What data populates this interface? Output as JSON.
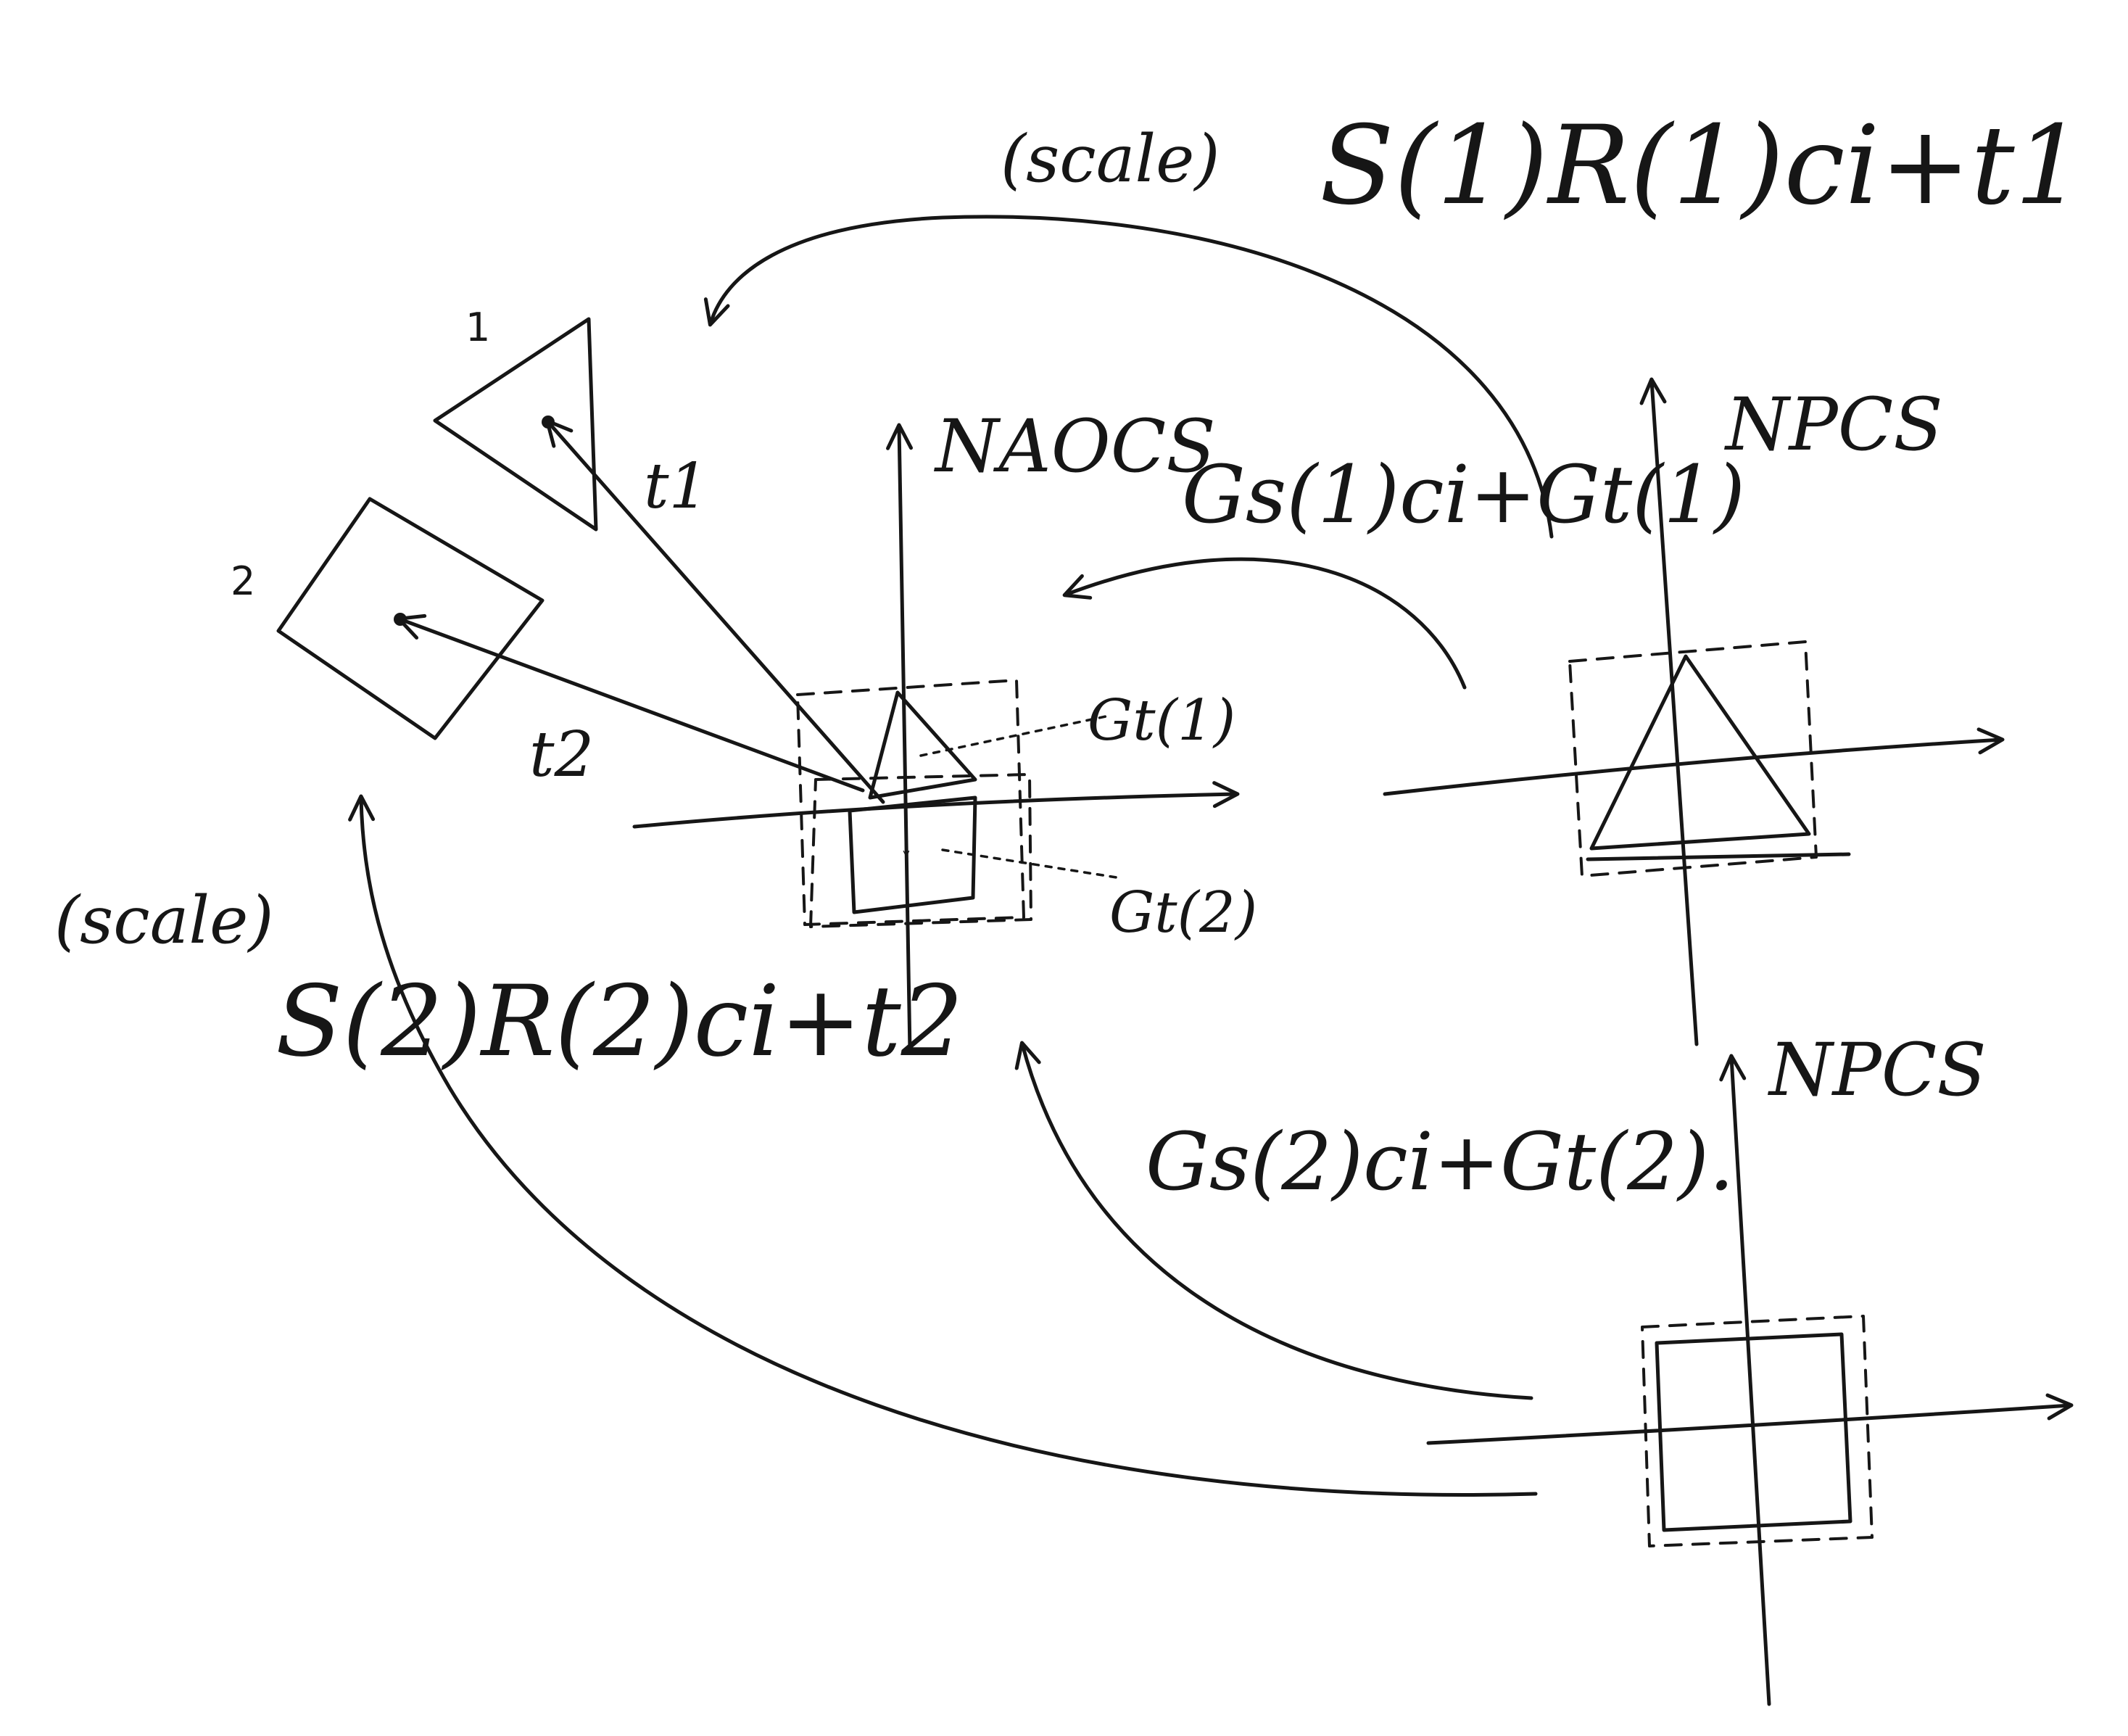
{
  "frames": {
    "naocs": "NAOCS",
    "npcs_upper": "NPCS",
    "npcs_lower": "NPCS"
  },
  "parts": {
    "part1_index": "1",
    "part2_index": "2"
  },
  "translations": {
    "t1": "t1",
    "t2": "t2"
  },
  "transforms": {
    "scale_top": "(scale)",
    "scale_bottom": "(scale)",
    "part1_camera_transform": "S(1)R(1)ci+t1",
    "part2_camera_transform": "S(2)R(2)ci+t2",
    "part1_naocs_transform": "Gs(1)ci+Gt(1)",
    "part2_naocs_transform": "Gs(2)ci+Gt(2)."
  },
  "joint_offsets": {
    "gt1": "Gt(1)",
    "gt2": "Gt(2)"
  },
  "colors": {
    "ink": "#161616",
    "paper": "#ffffff"
  }
}
